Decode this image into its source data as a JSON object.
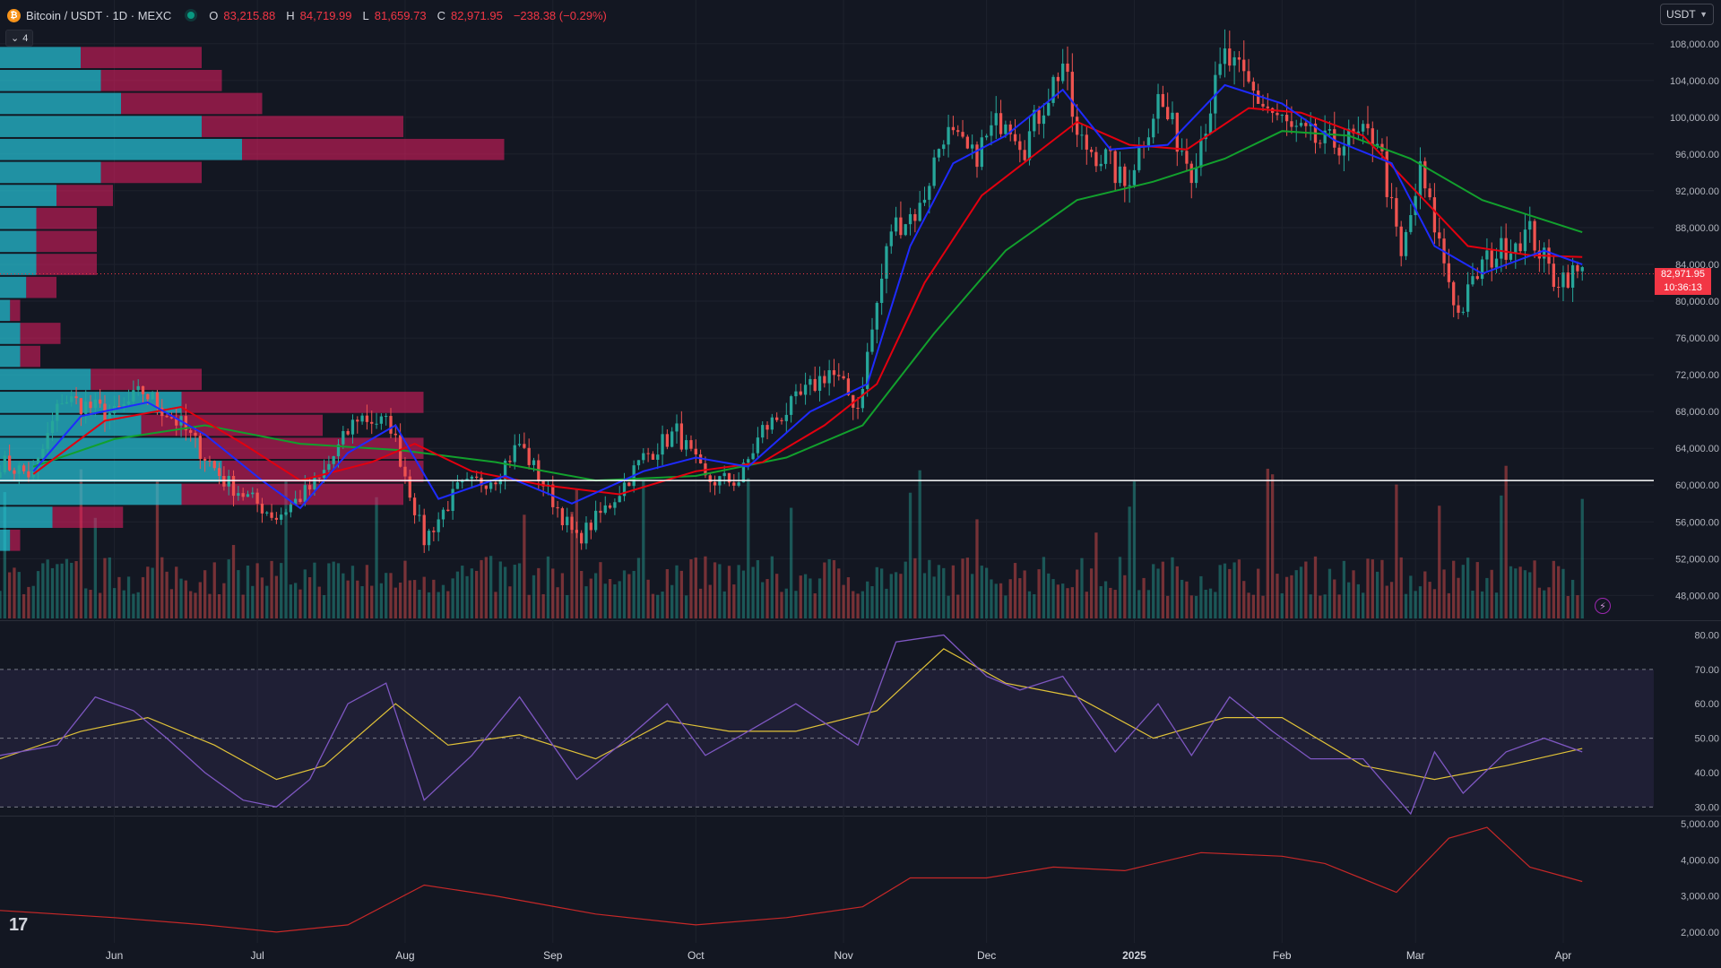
{
  "legend": {
    "symbol": "Bitcoin / USDT · 1D · MEXC",
    "open_label": "O",
    "open": "83,215.88",
    "high_label": "H",
    "high": "84,719.99",
    "low_label": "L",
    "low": "81,659.73",
    "close_label": "C",
    "close": "82,971.95",
    "change": "−238.38 (−0.29%)"
  },
  "indicators_collapsed_count": "4",
  "currency_select": "USDT",
  "last_price": {
    "price": "82,971.95",
    "countdown": "10:36:13"
  },
  "colors": {
    "background": "#131722",
    "grid": "#1e222d",
    "up": "#26a69a",
    "down": "#ef5350",
    "ema_fast": "#1e2bff",
    "ema_mid": "#e3000f",
    "ema_slow": "#12a02d",
    "rsi": "#7e57c2",
    "rsi_ma": "#e0c238",
    "lower_line": "#c62828"
  },
  "chart_data": [
    {
      "type": "candlestick",
      "x_ticks": [
        "Jun",
        "Jul",
        "Aug",
        "Sep",
        "Oct",
        "Nov",
        "Dec",
        "2025",
        "Feb",
        "Mar",
        "Apr"
      ],
      "x_tick_dates": [
        "2024-06-01",
        "2024-07-01",
        "2024-08-01",
        "2024-09-01",
        "2024-10-01",
        "2024-11-01",
        "2024-12-01",
        "2025-01-01",
        "2025-02-01",
        "2025-03-01",
        "2025-04-01"
      ],
      "x_range": [
        "2024-05-08",
        "2025-04-20"
      ],
      "y_ticks": [
        "108,000.00",
        "104,000.00",
        "100,000.00",
        "96,000.00",
        "92,000.00",
        "88,000.00",
        "84,000.00",
        "80,000.00",
        "76,000.00",
        "72,000.00",
        "68,000.00",
        "64,000.00",
        "60,000.00",
        "56,000.00",
        "52,000.00",
        "48,000.00"
      ],
      "ylim": [
        45500,
        111000
      ],
      "grid": true,
      "close_path": [
        [
          "2024-05-08",
          62500
        ],
        [
          "2024-05-15",
          61000
        ],
        [
          "2024-05-21",
          69500
        ],
        [
          "2024-06-01",
          67600
        ],
        [
          "2024-06-07",
          70200
        ],
        [
          "2024-06-15",
          66500
        ],
        [
          "2024-06-24",
          60500
        ],
        [
          "2024-07-05",
          56500
        ],
        [
          "2024-07-14",
          60500
        ],
        [
          "2024-07-22",
          67500
        ],
        [
          "2024-07-29",
          66500
        ],
        [
          "2024-08-05",
          54000
        ],
        [
          "2024-08-12",
          59500
        ],
        [
          "2024-08-20",
          61000
        ],
        [
          "2024-08-25",
          64500
        ],
        [
          "2024-09-06",
          54000
        ],
        [
          "2024-09-13",
          58000
        ],
        [
          "2024-09-20",
          63000
        ],
        [
          "2024-09-27",
          65800
        ],
        [
          "2024-10-03",
          60500
        ],
        [
          "2024-10-10",
          60500
        ],
        [
          "2024-10-15",
          66000
        ],
        [
          "2024-10-21",
          68500
        ],
        [
          "2024-10-29",
          72500
        ],
        [
          "2024-11-04",
          68500
        ],
        [
          "2024-11-11",
          88000
        ],
        [
          "2024-11-17",
          90000
        ],
        [
          "2024-11-22",
          98500
        ],
        [
          "2024-11-28",
          95500
        ],
        [
          "2024-12-05",
          100500
        ],
        [
          "2024-12-09",
          97000
        ],
        [
          "2024-12-17",
          106000
        ],
        [
          "2024-12-20",
          97500
        ],
        [
          "2024-12-26",
          95500
        ],
        [
          "2024-12-30",
          92500
        ],
        [
          "2025-01-06",
          102000
        ],
        [
          "2025-01-13",
          94500
        ],
        [
          "2025-01-20",
          106500
        ],
        [
          "2025-01-27",
          102000
        ],
        [
          "2025-02-03",
          98500
        ],
        [
          "2025-02-10",
          97000
        ],
        [
          "2025-02-21",
          98000
        ],
        [
          "2025-02-26",
          84500
        ],
        [
          "2025-03-02",
          94000
        ],
        [
          "2025-03-10",
          78500
        ],
        [
          "2025-03-15",
          84000
        ],
        [
          "2025-03-20",
          86000
        ],
        [
          "2025-03-25",
          87500
        ],
        [
          "2025-03-30",
          82500
        ],
        [
          "2025-04-03",
          83000
        ],
        [
          "2025-04-05",
          82972
        ]
      ],
      "ema_fast": [
        [
          "2024-05-15",
          61500
        ],
        [
          "2024-05-25",
          67500
        ],
        [
          "2024-06-08",
          69000
        ],
        [
          "2024-06-20",
          65500
        ],
        [
          "2024-07-02",
          60500
        ],
        [
          "2024-07-10",
          57500
        ],
        [
          "2024-07-20",
          63500
        ],
        [
          "2024-07-30",
          66500
        ],
        [
          "2024-08-08",
          58500
        ],
        [
          "2024-08-22",
          61000
        ],
        [
          "2024-09-05",
          58000
        ],
        [
          "2024-09-20",
          61500
        ],
        [
          "2024-10-01",
          63000
        ],
        [
          "2024-10-12",
          62000
        ],
        [
          "2024-10-25",
          68000
        ],
        [
          "2024-11-06",
          71000
        ],
        [
          "2024-11-15",
          86000
        ],
        [
          "2024-11-24",
          95000
        ],
        [
          "2024-12-05",
          98000
        ],
        [
          "2024-12-17",
          103000
        ],
        [
          "2024-12-27",
          96500
        ],
        [
          "2025-01-08",
          97000
        ],
        [
          "2025-01-20",
          103500
        ],
        [
          "2025-02-01",
          101500
        ],
        [
          "2025-02-12",
          97500
        ],
        [
          "2025-02-24",
          95000
        ],
        [
          "2025-03-05",
          86000
        ],
        [
          "2025-03-15",
          83000
        ],
        [
          "2025-03-28",
          85500
        ],
        [
          "2025-04-05",
          84000
        ]
      ],
      "ema_mid": [
        [
          "2024-05-15",
          61200
        ],
        [
          "2024-05-30",
          67000
        ],
        [
          "2024-06-15",
          68500
        ],
        [
          "2024-06-28",
          64500
        ],
        [
          "2024-07-10",
          60500
        ],
        [
          "2024-07-25",
          62500
        ],
        [
          "2024-08-03",
          64500
        ],
        [
          "2024-08-15",
          61500
        ],
        [
          "2024-08-30",
          60000
        ],
        [
          "2024-09-15",
          59000
        ],
        [
          "2024-10-01",
          61500
        ],
        [
          "2024-10-15",
          62500
        ],
        [
          "2024-10-28",
          66500
        ],
        [
          "2024-11-08",
          71000
        ],
        [
          "2024-11-18",
          82000
        ],
        [
          "2024-11-30",
          91500
        ],
        [
          "2024-12-10",
          95500
        ],
        [
          "2024-12-20",
          99500
        ],
        [
          "2024-12-31",
          97000
        ],
        [
          "2025-01-12",
          96500
        ],
        [
          "2025-01-25",
          101000
        ],
        [
          "2025-02-05",
          100500
        ],
        [
          "2025-02-18",
          98000
        ],
        [
          "2025-03-01",
          92000
        ],
        [
          "2025-03-12",
          86000
        ],
        [
          "2025-03-25",
          85000
        ],
        [
          "2025-04-05",
          84800
        ]
      ],
      "ema_slow": [
        [
          "2024-05-15",
          62000
        ],
        [
          "2024-06-01",
          65000
        ],
        [
          "2024-06-20",
          66500
        ],
        [
          "2024-07-10",
          64500
        ],
        [
          "2024-07-31",
          63800
        ],
        [
          "2024-08-20",
          62500
        ],
        [
          "2024-09-10",
          60500
        ],
        [
          "2024-10-01",
          61000
        ],
        [
          "2024-10-20",
          63000
        ],
        [
          "2024-11-05",
          66500
        ],
        [
          "2024-11-20",
          76500
        ],
        [
          "2024-12-05",
          85500
        ],
        [
          "2024-12-20",
          91000
        ],
        [
          "2025-01-05",
          93000
        ],
        [
          "2025-01-20",
          95500
        ],
        [
          "2025-02-01",
          98500
        ],
        [
          "2025-02-15",
          98000
        ],
        [
          "2025-02-28",
          95500
        ],
        [
          "2025-03-15",
          91000
        ],
        [
          "2025-03-30",
          88500
        ],
        [
          "2025-04-05",
          87500
        ]
      ],
      "horizontal_line": 60500,
      "volume_profile": [
        [
          106500,
          4,
          6
        ],
        [
          104000,
          5,
          6
        ],
        [
          101500,
          6,
          7
        ],
        [
          99000,
          10,
          10
        ],
        [
          96500,
          12,
          13
        ],
        [
          94000,
          5,
          5
        ],
        [
          91500,
          2.8,
          2.8
        ],
        [
          89000,
          1.8,
          3
        ],
        [
          86500,
          1.8,
          3
        ],
        [
          84000,
          1.8,
          3
        ],
        [
          81500,
          1.3,
          1.5
        ],
        [
          79000,
          0.5,
          0.5
        ],
        [
          76500,
          1,
          2
        ],
        [
          74000,
          1,
          1
        ],
        [
          71500,
          4.5,
          5.5
        ],
        [
          69000,
          9,
          12
        ],
        [
          66500,
          7,
          9
        ],
        [
          64000,
          10,
          11
        ],
        [
          61500,
          11,
          10
        ],
        [
          59000,
          9,
          11
        ],
        [
          56500,
          2.6,
          3.5
        ],
        [
          54000,
          0.5,
          0.5
        ]
      ],
      "volume_profile_scale": 22.5
    },
    {
      "type": "line",
      "indicator": "RSI",
      "y_ticks": [
        "80.00",
        "70.00",
        "60.00",
        "50.00",
        "40.00",
        "30.00"
      ],
      "ylim": [
        28,
        83
      ],
      "band": [
        30,
        70
      ],
      "rsi": [
        [
          "2024-05-08",
          45
        ],
        [
          "2024-05-20",
          48
        ],
        [
          "2024-05-28",
          62
        ],
        [
          "2024-06-05",
          58
        ],
        [
          "2024-06-12",
          50
        ],
        [
          "2024-06-20",
          40
        ],
        [
          "2024-06-28",
          32
        ],
        [
          "2024-07-05",
          30
        ],
        [
          "2024-07-12",
          38
        ],
        [
          "2024-07-20",
          60
        ],
        [
          "2024-07-28",
          66
        ],
        [
          "2024-08-05",
          32
        ],
        [
          "2024-08-15",
          45
        ],
        [
          "2024-08-25",
          62
        ],
        [
          "2024-09-06",
          38
        ],
        [
          "2024-09-15",
          48
        ],
        [
          "2024-09-25",
          60
        ],
        [
          "2024-10-03",
          45
        ],
        [
          "2024-10-12",
          52
        ],
        [
          "2024-10-22",
          60
        ],
        [
          "2024-11-04",
          48
        ],
        [
          "2024-11-12",
          78
        ],
        [
          "2024-11-22",
          80
        ],
        [
          "2024-12-01",
          68
        ],
        [
          "2024-12-08",
          64
        ],
        [
          "2024-12-17",
          68
        ],
        [
          "2024-12-28",
          46
        ],
        [
          "2025-01-06",
          60
        ],
        [
          "2025-01-13",
          45
        ],
        [
          "2025-01-21",
          62
        ],
        [
          "2025-01-30",
          52
        ],
        [
          "2025-02-07",
          44
        ],
        [
          "2025-02-18",
          44
        ],
        [
          "2025-02-28",
          28
        ],
        [
          "2025-03-05",
          46
        ],
        [
          "2025-03-11",
          34
        ],
        [
          "2025-03-20",
          46
        ],
        [
          "2025-03-28",
          50
        ],
        [
          "2025-04-05",
          46
        ]
      ],
      "rsi_ma": [
        [
          "2024-05-08",
          44
        ],
        [
          "2024-05-25",
          52
        ],
        [
          "2024-06-08",
          56
        ],
        [
          "2024-06-22",
          48
        ],
        [
          "2024-07-05",
          38
        ],
        [
          "2024-07-15",
          42
        ],
        [
          "2024-07-30",
          60
        ],
        [
          "2024-08-10",
          48
        ],
        [
          "2024-08-25",
          51
        ],
        [
          "2024-09-10",
          44
        ],
        [
          "2024-09-25",
          55
        ],
        [
          "2024-10-08",
          52
        ],
        [
          "2024-10-22",
          52
        ],
        [
          "2024-11-08",
          58
        ],
        [
          "2024-11-22",
          76
        ],
        [
          "2024-12-05",
          66
        ],
        [
          "2024-12-20",
          62
        ],
        [
          "2025-01-05",
          50
        ],
        [
          "2025-01-20",
          56
        ],
        [
          "2025-02-01",
          56
        ],
        [
          "2025-02-18",
          42
        ],
        [
          "2025-03-05",
          38
        ],
        [
          "2025-03-20",
          42
        ],
        [
          "2025-04-05",
          47
        ]
      ]
    },
    {
      "type": "line",
      "y_ticks": [
        "5,000.00",
        "4,000.00",
        "3,000.00",
        "2,000.00"
      ],
      "ylim": [
        1750,
        5150
      ],
      "series": [
        [
          "2024-05-08",
          2600
        ],
        [
          "2024-06-01",
          2400
        ],
        [
          "2024-06-20",
          2200
        ],
        [
          "2024-07-05",
          2000
        ],
        [
          "2024-07-20",
          2200
        ],
        [
          "2024-08-05",
          3300
        ],
        [
          "2024-08-20",
          3000
        ],
        [
          "2024-09-10",
          2500
        ],
        [
          "2024-10-01",
          2200
        ],
        [
          "2024-10-20",
          2400
        ],
        [
          "2024-11-05",
          2700
        ],
        [
          "2024-11-15",
          3500
        ],
        [
          "2024-12-01",
          3500
        ],
        [
          "2024-12-15",
          3800
        ],
        [
          "2024-12-30",
          3700
        ],
        [
          "2025-01-15",
          4200
        ],
        [
          "2025-02-01",
          4100
        ],
        [
          "2025-02-10",
          3900
        ],
        [
          "2025-02-25",
          3100
        ],
        [
          "2025-03-08",
          4600
        ],
        [
          "2025-03-16",
          4900
        ],
        [
          "2025-03-25",
          3800
        ],
        [
          "2025-04-05",
          3400
        ]
      ]
    }
  ]
}
